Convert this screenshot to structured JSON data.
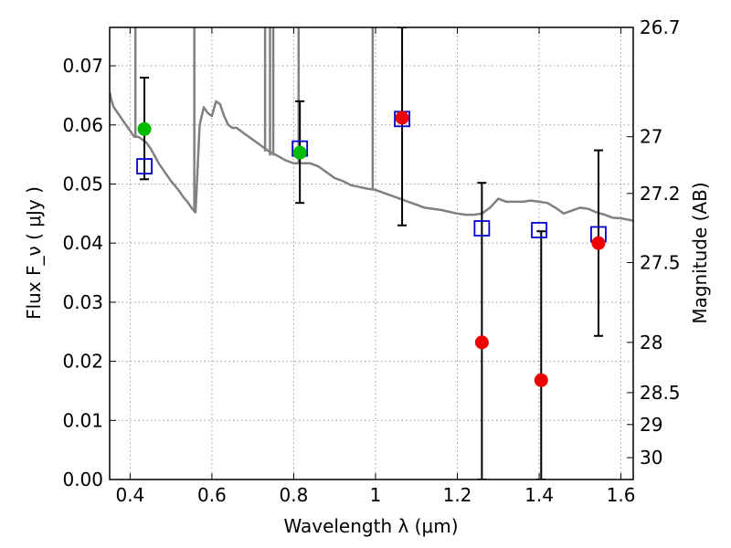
{
  "chart_data": {
    "type": "scatter",
    "title": "",
    "xlabel": "Wavelength  λ (μm)",
    "ylabel": "Flux  F_ν  ( μJy )",
    "y2label": "Magnitude (AB)",
    "xlim": [
      0.35,
      1.63
    ],
    "ylim": [
      0.0,
      0.0765
    ],
    "grid": true,
    "x_ticks": [
      0.4,
      0.6,
      0.8,
      1.0,
      1.2,
      1.4,
      1.6
    ],
    "x_tick_labels": [
      "0.4",
      "0.6",
      "0.8",
      "1",
      "1.2",
      "1.4",
      "1.6"
    ],
    "y_ticks": [
      0.0,
      0.01,
      0.02,
      0.03,
      0.04,
      0.05,
      0.06,
      0.07
    ],
    "y_tick_labels": [
      "0.00",
      "0.01",
      "0.02",
      "0.03",
      "0.04",
      "0.05",
      "0.06",
      "0.07"
    ],
    "y2_ticks": [
      {
        "label": "26.7",
        "flux": 0.0765
      },
      {
        "label": "27",
        "flux": 0.058
      },
      {
        "label": "27.2",
        "flux": 0.0484
      },
      {
        "label": "27.5",
        "flux": 0.0367
      },
      {
        "label": "28",
        "flux": 0.0232
      },
      {
        "label": "28.5",
        "flux": 0.0147
      },
      {
        "label": "29",
        "flux": 0.0093
      },
      {
        "label": "30",
        "flux": 0.0037
      }
    ],
    "colors": {
      "model": "#808080",
      "green_points": "#00bb00",
      "red_points": "#ee0000",
      "squares": "#0000cc",
      "errorbars": "#000000"
    },
    "model_spectrum": {
      "x": [
        0.35,
        0.355,
        0.36,
        0.37,
        0.38,
        0.39,
        0.4,
        0.41,
        0.42,
        0.43,
        0.44,
        0.45,
        0.46,
        0.47,
        0.48,
        0.49,
        0.5,
        0.51,
        0.52,
        0.53,
        0.54,
        0.55,
        0.556,
        0.56,
        0.57,
        0.58,
        0.59,
        0.6,
        0.61,
        0.62,
        0.63,
        0.64,
        0.65,
        0.66,
        0.67,
        0.68,
        0.69,
        0.7,
        0.72,
        0.74,
        0.76,
        0.78,
        0.8,
        0.82,
        0.84,
        0.86,
        0.88,
        0.9,
        0.92,
        0.94,
        0.96,
        0.98,
        1.0,
        1.02,
        1.04,
        1.06,
        1.08,
        1.1,
        1.12,
        1.14,
        1.16,
        1.18,
        1.2,
        1.22,
        1.24,
        1.26,
        1.28,
        1.3,
        1.32,
        1.34,
        1.36,
        1.38,
        1.4,
        1.42,
        1.44,
        1.46,
        1.48,
        1.5,
        1.52,
        1.54,
        1.56,
        1.58,
        1.6,
        1.63
      ],
      "y": [
        0.0655,
        0.064,
        0.063,
        0.062,
        0.061,
        0.06,
        0.059,
        0.058,
        0.058,
        0.0575,
        0.057,
        0.056,
        0.0548,
        0.0535,
        0.0525,
        0.0515,
        0.0505,
        0.0497,
        0.0488,
        0.0478,
        0.047,
        0.046,
        0.0455,
        0.0452,
        0.06,
        0.063,
        0.062,
        0.0615,
        0.064,
        0.0635,
        0.0615,
        0.06,
        0.0595,
        0.0595,
        0.059,
        0.0585,
        0.058,
        0.0575,
        0.0565,
        0.0555,
        0.0548,
        0.054,
        0.0535,
        0.0535,
        0.0535,
        0.053,
        0.052,
        0.051,
        0.0505,
        0.0498,
        0.0495,
        0.0492,
        0.049,
        0.0485,
        0.048,
        0.0475,
        0.047,
        0.0465,
        0.046,
        0.0458,
        0.0456,
        0.0453,
        0.045,
        0.0448,
        0.0448,
        0.045,
        0.046,
        0.0475,
        0.047,
        0.047,
        0.047,
        0.0472,
        0.047,
        0.0468,
        0.046,
        0.045,
        0.0455,
        0.046,
        0.0458,
        0.0452,
        0.0448,
        0.0443,
        0.0442,
        0.0438
      ]
    },
    "emission_spikes": [
      {
        "x": 0.413,
        "top": 0.0765
      },
      {
        "x": 0.557,
        "top": 0.0765
      },
      {
        "x": 0.73,
        "top": 0.0765
      },
      {
        "x": 0.742,
        "top": 0.0765
      },
      {
        "x": 0.75,
        "top": 0.0765
      },
      {
        "x": 0.812,
        "top": 0.0765
      },
      {
        "x": 0.993,
        "top": 0.0765
      }
    ],
    "series": [
      {
        "name": "",
        "marker": "square",
        "x": [
          0.435,
          0.815,
          1.065,
          1.26,
          1.4,
          1.545
        ],
        "y": [
          0.053,
          0.056,
          0.061,
          0.0425,
          0.0422,
          0.0415
        ]
      },
      {
        "name": "",
        "marker": "circle-green",
        "x": [
          0.435,
          0.815
        ],
        "y": [
          0.0593,
          0.0553
        ],
        "yerr_low": [
          0.0508,
          0.0468
        ],
        "yerr_high": [
          0.068,
          0.064
        ]
      },
      {
        "name": "",
        "marker": "circle-red",
        "x": [
          1.065,
          1.26,
          1.405,
          1.545
        ],
        "y": [
          0.0612,
          0.0232,
          0.0168,
          0.04
        ],
        "yerr_low": [
          0.043,
          0.0,
          0.0,
          0.0243
        ],
        "yerr_high": [
          0.0765,
          0.0502,
          0.042,
          0.0557
        ]
      }
    ]
  }
}
